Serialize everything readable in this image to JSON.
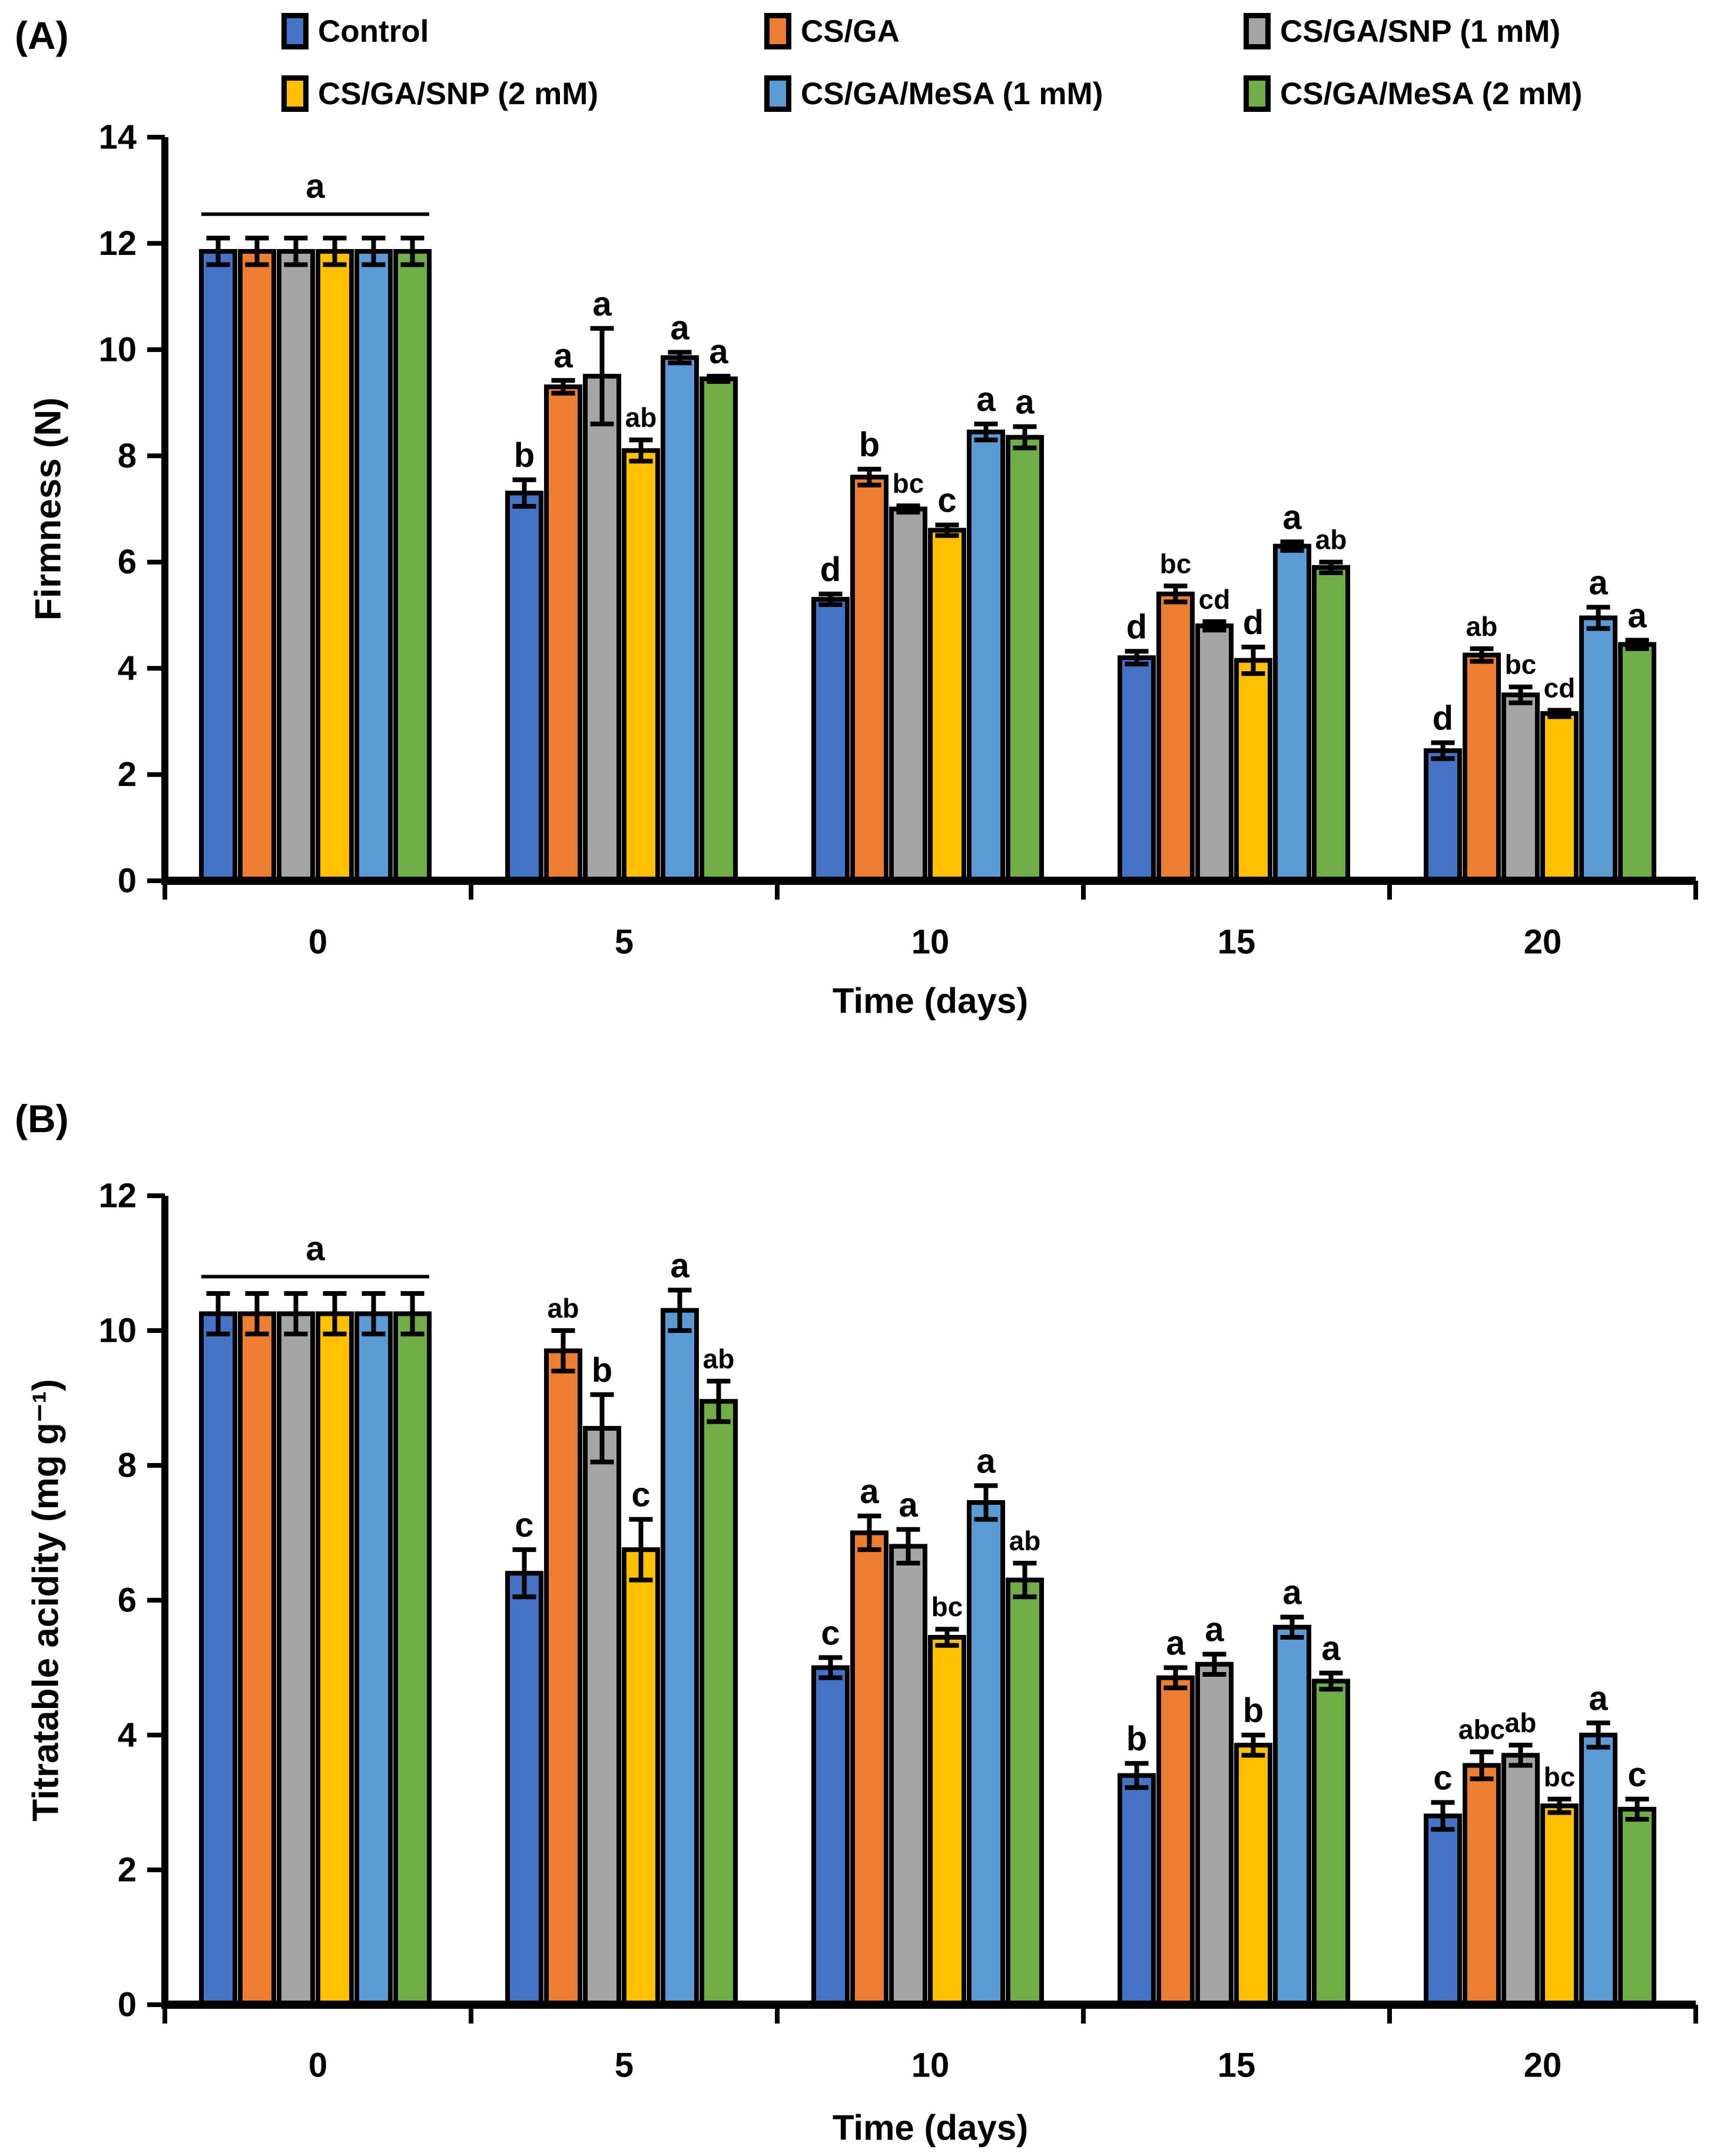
{
  "panels": {
    "a_label": "(A)",
    "b_label": "(B)"
  },
  "legend": [
    {
      "label": "Control",
      "color": "#4472C4"
    },
    {
      "label": "CS/GA",
      "color": "#ED7D31"
    },
    {
      "label": "CS/GA/SNP (1 mM)",
      "color": "#A5A5A5"
    },
    {
      "label": "CS/GA/SNP (2 mM)",
      "color": "#FFC000"
    },
    {
      "label": "CS/GA/MeSA (1 mM)",
      "color": "#5B9BD5"
    },
    {
      "label": "CS/GA/MeSA (2 mM)",
      "color": "#70AD47"
    }
  ],
  "chart_data": [
    {
      "type": "bar",
      "panel": "(A)",
      "categories": [
        "0",
        "5",
        "10",
        "15",
        "20"
      ],
      "xlabel": "Time (days)",
      "ylabel": "Firmness (N)",
      "ylim": [
        0,
        14
      ],
      "ytick_step": 2,
      "grid": false,
      "legend_position": "top",
      "group_annotation": {
        "category_index": 0,
        "text": "a",
        "line_value": 12.55
      },
      "series": [
        {
          "name": "Control",
          "color": "#4472C4",
          "values": [
            11.85,
            7.3,
            5.3,
            4.2,
            2.45
          ],
          "errors": [
            0.25,
            0.25,
            0.1,
            0.12,
            0.15
          ],
          "letters": [
            null,
            "b",
            "d",
            "d",
            "d"
          ]
        },
        {
          "name": "CS/GA",
          "color": "#ED7D31",
          "values": [
            11.85,
            9.3,
            7.6,
            5.4,
            4.25
          ],
          "errors": [
            0.25,
            0.12,
            0.15,
            0.15,
            0.12
          ],
          "letters": [
            null,
            "a",
            "b",
            "bc",
            "ab"
          ]
        },
        {
          "name": "CS/GA/SNP (1 mM)",
          "color": "#A5A5A5",
          "values": [
            11.85,
            9.5,
            7.0,
            4.8,
            3.5
          ],
          "errors": [
            0.25,
            0.9,
            0.06,
            0.08,
            0.15
          ],
          "letters": [
            null,
            "a",
            "bc",
            "cd",
            "bc"
          ]
        },
        {
          "name": "CS/GA/SNP (2 mM)",
          "color": "#FFC000",
          "values": [
            11.85,
            8.1,
            6.6,
            4.15,
            3.15
          ],
          "errors": [
            0.25,
            0.2,
            0.1,
            0.25,
            0.06
          ],
          "letters": [
            null,
            "ab",
            "c",
            "d",
            "cd"
          ]
        },
        {
          "name": "CS/GA/MeSA (1 mM)",
          "color": "#5B9BD5",
          "values": [
            11.85,
            9.85,
            8.45,
            6.3,
            4.95
          ],
          "errors": [
            0.25,
            0.1,
            0.15,
            0.08,
            0.2
          ],
          "letters": [
            null,
            "a",
            "a",
            "a",
            "a"
          ]
        },
        {
          "name": "CS/GA/MeSA (2 mM)",
          "color": "#70AD47",
          "values": [
            11.85,
            9.45,
            8.35,
            5.9,
            4.45
          ],
          "errors": [
            0.25,
            0.05,
            0.2,
            0.1,
            0.08
          ],
          "letters": [
            null,
            "a",
            "a",
            "ab",
            "a"
          ]
        }
      ]
    },
    {
      "type": "bar",
      "panel": "(B)",
      "categories": [
        "0",
        "5",
        "10",
        "15",
        "20"
      ],
      "xlabel": "Time (days)",
      "ylabel": "Titratable acidity (mg g⁻¹)",
      "ylim": [
        0,
        12
      ],
      "ytick_step": 2,
      "grid": false,
      "legend_position": "top",
      "group_annotation": {
        "category_index": 0,
        "text": "a",
        "line_value": 10.8
      },
      "series": [
        {
          "name": "Control",
          "color": "#4472C4",
          "values": [
            10.25,
            6.4,
            5.0,
            3.4,
            2.8
          ],
          "errors": [
            0.3,
            0.35,
            0.15,
            0.18,
            0.2
          ],
          "letters": [
            null,
            "c",
            "c",
            "b",
            "c"
          ]
        },
        {
          "name": "CS/GA",
          "color": "#ED7D31",
          "values": [
            10.25,
            9.7,
            7.0,
            4.85,
            3.55
          ],
          "errors": [
            0.3,
            0.3,
            0.25,
            0.15,
            0.2
          ],
          "letters": [
            null,
            "ab",
            "a",
            "a",
            "abc"
          ]
        },
        {
          "name": "CS/GA/SNP (1 mM)",
          "color": "#A5A5A5",
          "values": [
            10.25,
            8.55,
            6.8,
            5.05,
            3.7
          ],
          "errors": [
            0.3,
            0.5,
            0.25,
            0.15,
            0.15
          ],
          "letters": [
            null,
            "b",
            "a",
            "a",
            "ab"
          ]
        },
        {
          "name": "CS/GA/SNP (2 mM)",
          "color": "#FFC000",
          "values": [
            10.25,
            6.75,
            5.45,
            3.85,
            2.95
          ],
          "errors": [
            0.3,
            0.45,
            0.12,
            0.15,
            0.1
          ],
          "letters": [
            null,
            "c",
            "bc",
            "b",
            "bc"
          ]
        },
        {
          "name": "CS/GA/MeSA (1 mM)",
          "color": "#5B9BD5",
          "values": [
            10.25,
            10.3,
            7.45,
            5.6,
            4.0
          ],
          "errors": [
            0.3,
            0.3,
            0.25,
            0.15,
            0.18
          ],
          "letters": [
            null,
            "a",
            "a",
            "a",
            "a"
          ]
        },
        {
          "name": "CS/GA/MeSA (2 mM)",
          "color": "#70AD47",
          "values": [
            10.25,
            8.95,
            6.3,
            4.8,
            2.9
          ],
          "errors": [
            0.3,
            0.3,
            0.25,
            0.12,
            0.15
          ],
          "letters": [
            null,
            "ab",
            "ab",
            "a",
            "c"
          ]
        }
      ]
    }
  ]
}
